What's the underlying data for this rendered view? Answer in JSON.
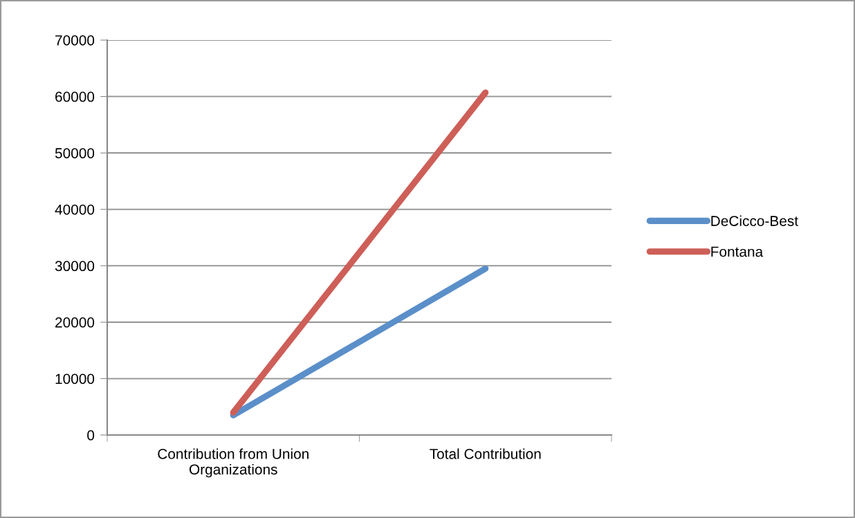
{
  "chart_data": {
    "type": "line",
    "categories": [
      "Contribution from Union\nOrganizations",
      "Total Contribution"
    ],
    "series": [
      {
        "name": "DeCicco-Best",
        "color": "#5b8fc9",
        "values": [
          3500,
          29500
        ]
      },
      {
        "name": "Fontana",
        "color": "#cd5f58",
        "values": [
          4000,
          60700
        ]
      }
    ],
    "ylim": [
      0,
      70000
    ],
    "yticks": [
      0,
      10000,
      20000,
      30000,
      40000,
      50000,
      60000,
      70000
    ],
    "grid": "y",
    "legend": "right",
    "marker": "none",
    "line_style": "solid"
  }
}
